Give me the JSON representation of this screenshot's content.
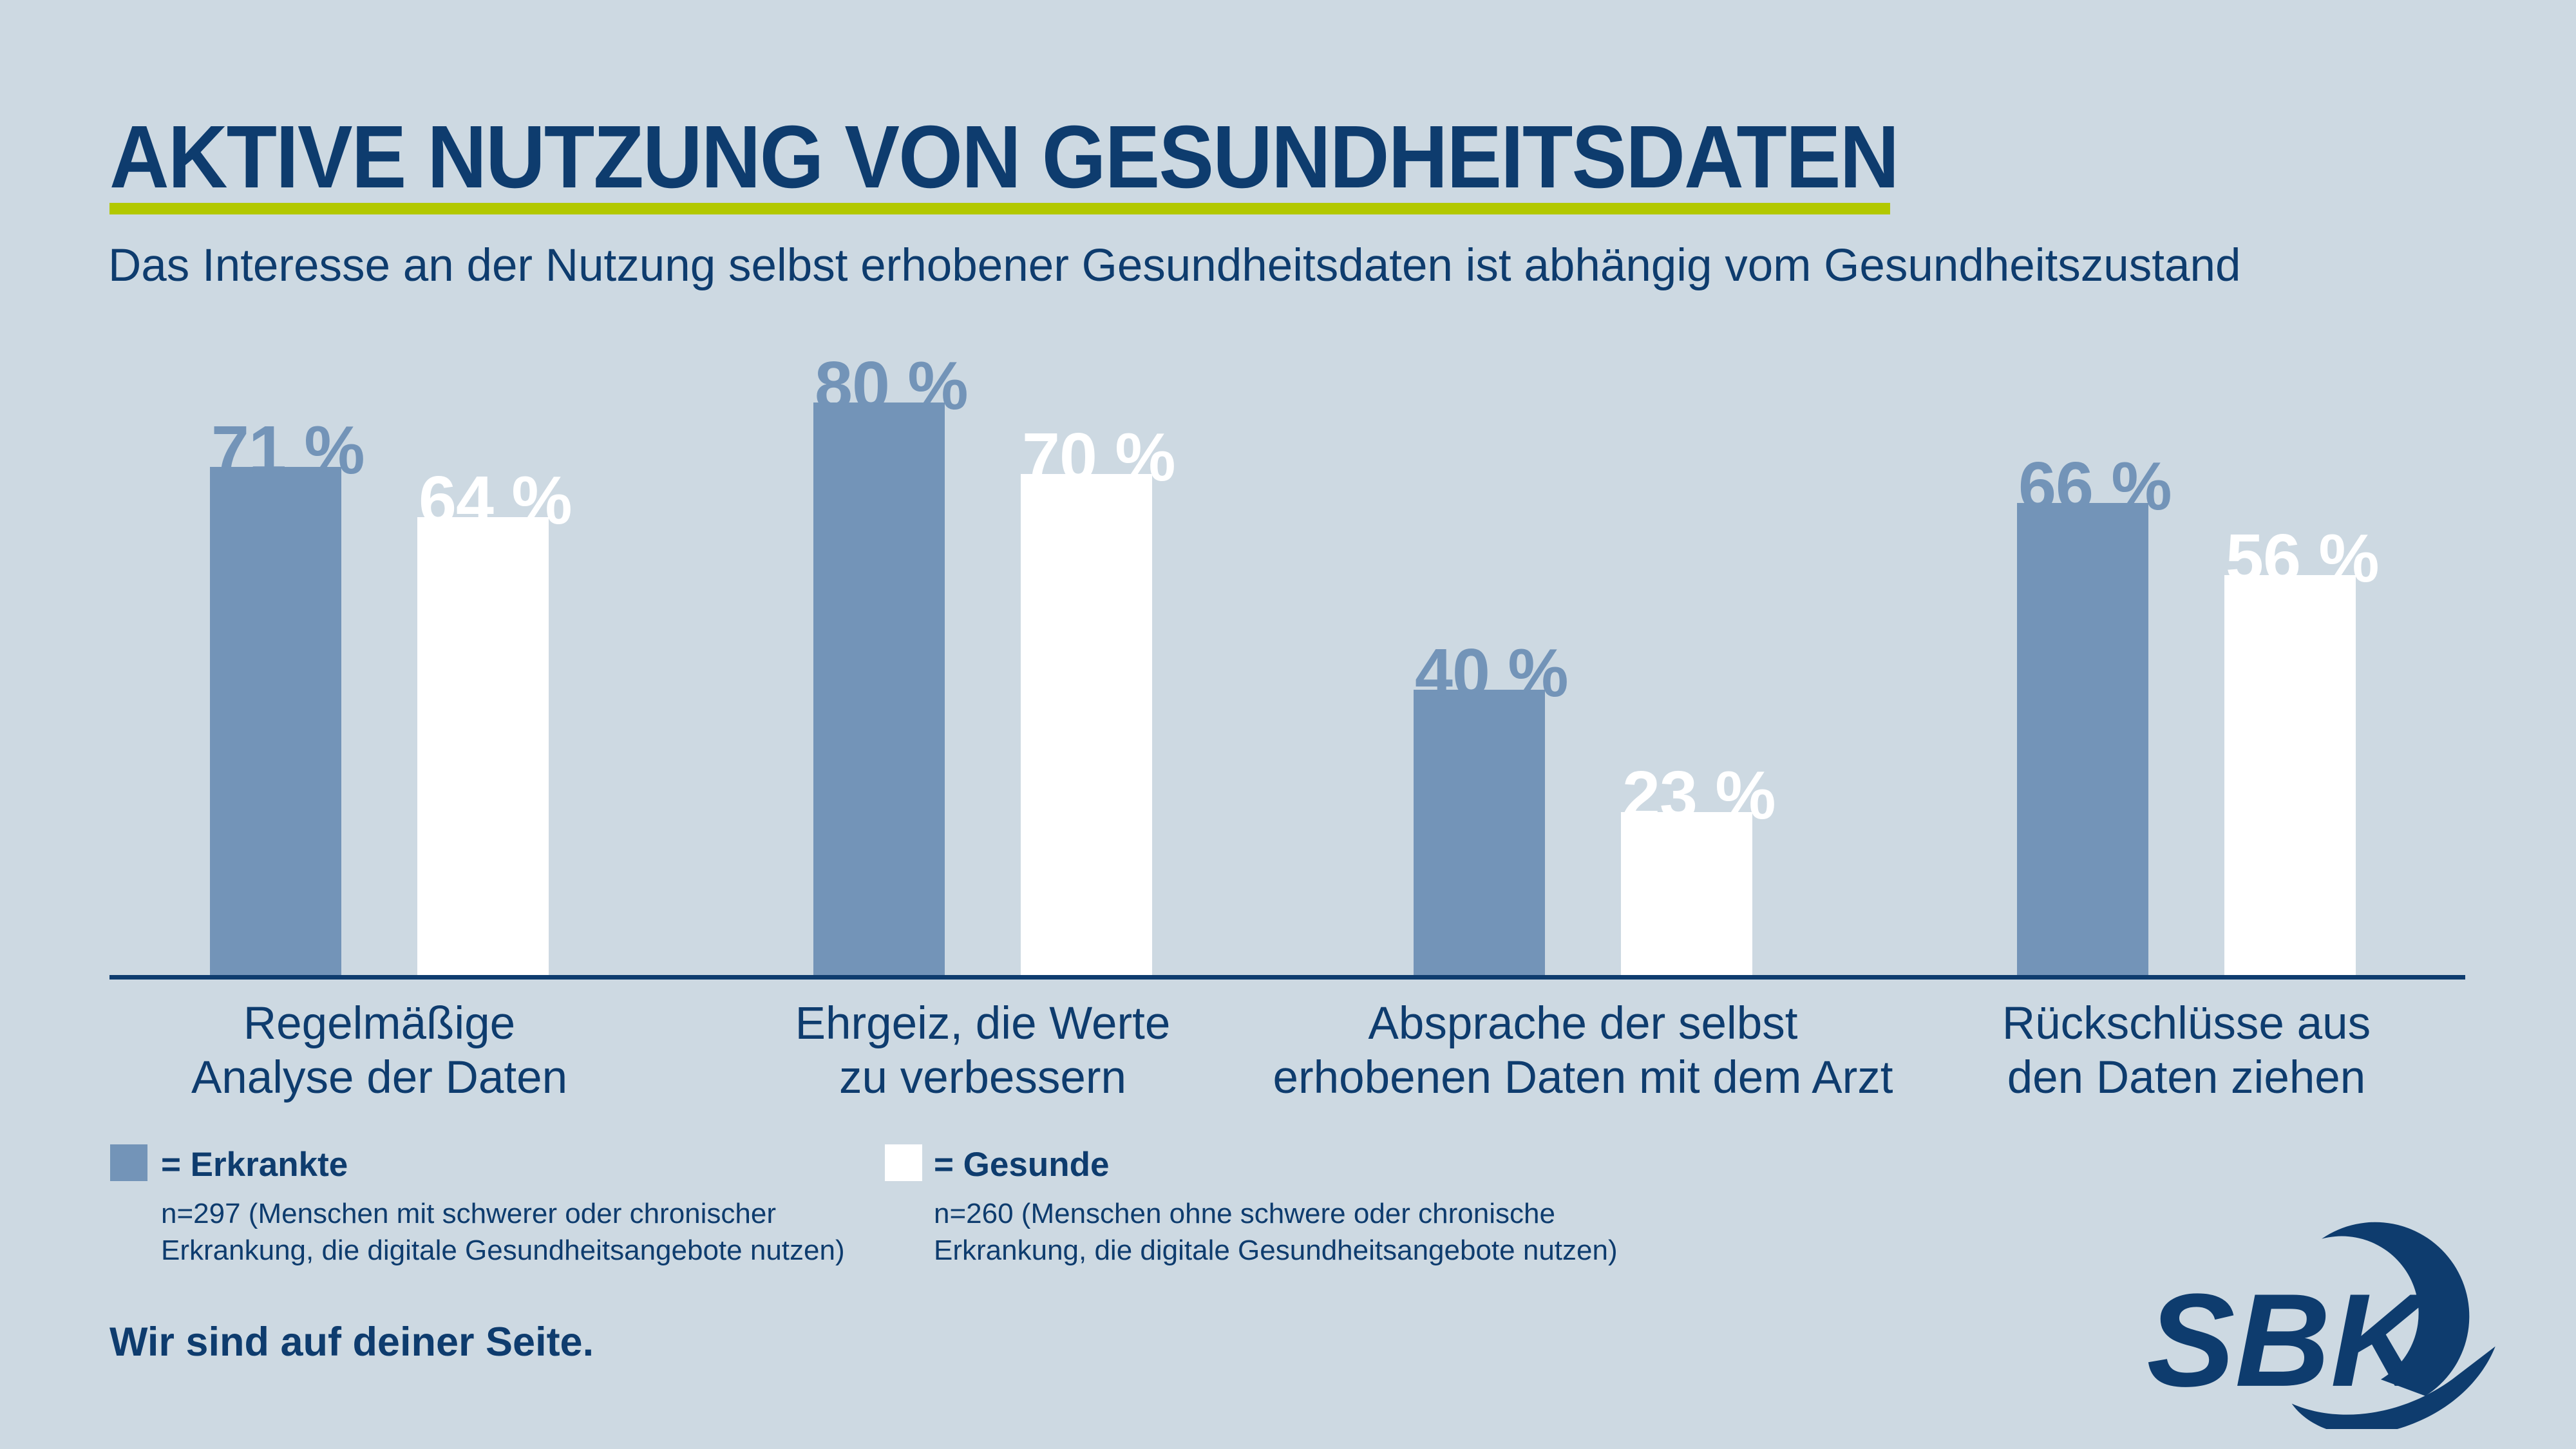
{
  "header": {
    "title": "AKTIVE NUTZUNG VON GESUNDHEITSDATEN",
    "subtitle": "Das Interesse an der Nutzung selbst erhobener Gesundheitsdaten ist abhängig vom Gesundheitszustand"
  },
  "chart_data": {
    "type": "bar",
    "categories": [
      [
        "Regelmäßige",
        "Analyse der Daten"
      ],
      [
        "Ehrgeiz, die Werte",
        "zu verbessern"
      ],
      [
        "Absprache der selbst",
        "erhobenen Daten mit dem Arzt"
      ],
      [
        "Rückschlüsse aus",
        "den Daten ziehen"
      ]
    ],
    "series": [
      {
        "name": "Erkrankte",
        "color": "#7394B8",
        "values": [
          71,
          80,
          40,
          66
        ]
      },
      {
        "name": "Gesunde",
        "color": "#FFFFFF",
        "values": [
          64,
          70,
          23,
          56
        ]
      }
    ],
    "unit": "%",
    "value_suffix": " %",
    "ylim": [
      0,
      100
    ],
    "grid": false,
    "legend_position": "bottom-left"
  },
  "legend": [
    {
      "swatch_color": "#7394B8",
      "label": "= Erkrankte",
      "note_lines": [
        "n=297 (Menschen mit schwerer oder chronischer",
        "Erkrankung, die digitale Gesundheitsangebote nutzen)"
      ]
    },
    {
      "swatch_color": "#FFFFFF",
      "label": "= Gesunde",
      "note_lines": [
        "n=260 (Menschen ohne schwere oder chronische",
        "Erkrankung, die digitale Gesundheitsangebote nutzen)"
      ]
    }
  ],
  "footer": {
    "slogan": "Wir sind auf deiner Seite.",
    "logo_text": "SBK"
  },
  "colors": {
    "background": "#CDD9E2",
    "navy": "#0E3C6E",
    "bar_blue": "#7394B8",
    "bar_white": "#FFFFFF",
    "underline_green": "#B2C800"
  }
}
